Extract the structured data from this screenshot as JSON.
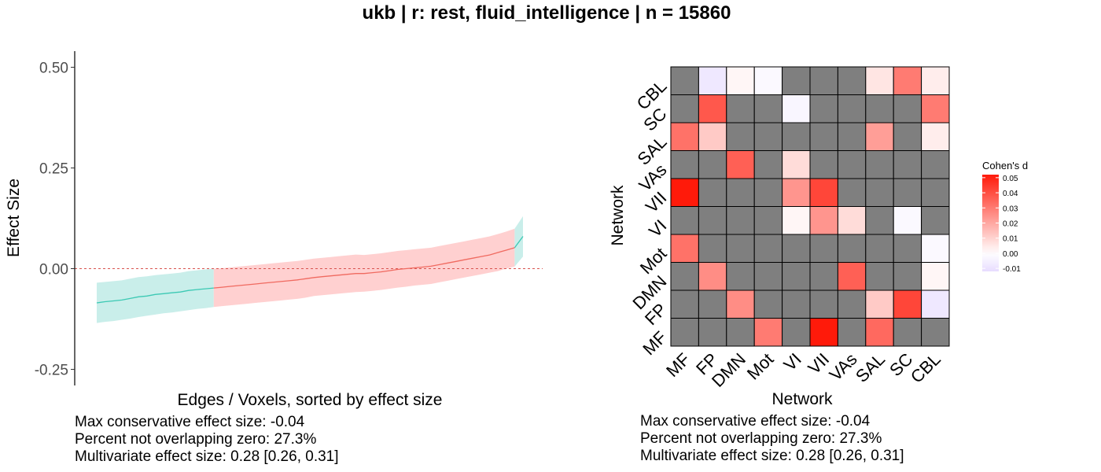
{
  "title": "ukb | r: rest, fluid_intelligence | n = 15860",
  "colors": {
    "neg_ci": "#c9eeea",
    "neg_line": "#3cc9b4",
    "pos_ci": "#ffd0d0",
    "pos_line": "#f06a60",
    "zero_line": "#d9534f",
    "na_cell": "#7f7f7f",
    "heat_low": "#e7dcff",
    "heat_mid": "#ffffff",
    "heat_high": "#ff1a0a"
  },
  "left_stats": [
    "Max conservative effect size: -0.04",
    "Percent not overlapping zero: 27.3%",
    "Multivariate effect size: 0.28 [0.26, 0.31]"
  ],
  "right_stats": [
    "Max conservative effect size: -0.04",
    "Percent not overlapping zero: 27.3%",
    "Multivariate effect size: 0.28 [0.26, 0.31]"
  ],
  "chart_data": [
    {
      "type": "line",
      "xlabel": "Edges / Voxels, sorted by effect size",
      "ylabel": "Effect Size",
      "ylim": [
        -0.29,
        0.54
      ],
      "yticks": [
        0.5,
        0.25,
        0.0,
        -0.25
      ],
      "ytick_labels": [
        "0.50",
        "0.25",
        "0.00",
        "-0.25"
      ],
      "zero_reference_line": 0.0,
      "grid": false,
      "estimate": [
        -0.085,
        -0.082,
        -0.08,
        -0.078,
        -0.074,
        -0.07,
        -0.068,
        -0.064,
        -0.062,
        -0.06,
        -0.058,
        -0.054,
        -0.052,
        -0.05,
        -0.048,
        -0.046,
        -0.044,
        -0.042,
        -0.04,
        -0.038,
        -0.036,
        -0.034,
        -0.032,
        -0.03,
        -0.028,
        -0.025,
        -0.022,
        -0.02,
        -0.018,
        -0.016,
        -0.014,
        -0.012,
        -0.012,
        -0.01,
        -0.008,
        -0.005,
        -0.002,
        0.0,
        0.002,
        0.004,
        0.006,
        0.01,
        0.014,
        0.018,
        0.022,
        0.026,
        0.03,
        0.034,
        0.04,
        0.046,
        0.052,
        0.08
      ],
      "ci_lower": [
        -0.135,
        -0.132,
        -0.13,
        -0.127,
        -0.124,
        -0.12,
        -0.117,
        -0.114,
        -0.111,
        -0.109,
        -0.106,
        -0.103,
        -0.1,
        -0.098,
        -0.095,
        -0.093,
        -0.091,
        -0.089,
        -0.087,
        -0.085,
        -0.083,
        -0.081,
        -0.079,
        -0.077,
        -0.075,
        -0.072,
        -0.068,
        -0.066,
        -0.064,
        -0.062,
        -0.06,
        -0.058,
        -0.057,
        -0.055,
        -0.053,
        -0.05,
        -0.047,
        -0.045,
        -0.042,
        -0.04,
        -0.038,
        -0.034,
        -0.03,
        -0.026,
        -0.022,
        -0.018,
        -0.014,
        -0.01,
        -0.006,
        0.0,
        0.005,
        0.03
      ],
      "ci_upper": [
        -0.035,
        -0.033,
        -0.031,
        -0.029,
        -0.025,
        -0.021,
        -0.019,
        -0.016,
        -0.014,
        -0.012,
        -0.01,
        -0.006,
        -0.004,
        -0.002,
        0.0,
        0.001,
        0.003,
        0.005,
        0.007,
        0.009,
        0.011,
        0.013,
        0.015,
        0.017,
        0.019,
        0.022,
        0.025,
        0.027,
        0.029,
        0.031,
        0.033,
        0.035,
        0.034,
        0.036,
        0.038,
        0.041,
        0.044,
        0.046,
        0.048,
        0.05,
        0.052,
        0.056,
        0.06,
        0.064,
        0.068,
        0.072,
        0.076,
        0.08,
        0.086,
        0.092,
        0.099,
        0.13
      ],
      "ci_overlaps_zero": [
        false,
        false,
        false,
        false,
        false,
        false,
        false,
        false,
        false,
        false,
        false,
        false,
        false,
        false,
        true,
        true,
        true,
        true,
        true,
        true,
        true,
        true,
        true,
        true,
        true,
        true,
        true,
        true,
        true,
        true,
        true,
        true,
        true,
        true,
        true,
        true,
        true,
        true,
        true,
        true,
        true,
        true,
        true,
        true,
        true,
        true,
        true,
        true,
        true,
        true,
        false,
        false
      ]
    },
    {
      "type": "heatmap",
      "xlabel": "Network",
      "ylabel": "Network",
      "x_categories": [
        "MF",
        "FP",
        "DMN",
        "Mot",
        "VI",
        "VII",
        "VAs",
        "SAL",
        "SC",
        "CBL"
      ],
      "y_categories_top_to_bottom": [
        "CBL",
        "SC",
        "SAL",
        "VAs",
        "VII",
        "VI",
        "Mot",
        "DMN",
        "FP",
        "MF"
      ],
      "legend_title": "Cohen's d",
      "legend_ticks": [
        0.05,
        0.04,
        0.03,
        0.02,
        0.01,
        0.0,
        -0.01
      ],
      "legend_tick_labels": [
        "0.05",
        "0.04",
        "0.03",
        "0.02",
        "0.01",
        "0.00",
        "-0.01"
      ],
      "value_range": [
        -0.012,
        0.052
      ],
      "values_top_to_bottom": [
        [
          null,
          -0.008,
          0.002,
          -0.002,
          null,
          null,
          null,
          0.006,
          0.03,
          0.004
        ],
        [
          null,
          0.038,
          null,
          null,
          -0.003,
          null,
          null,
          null,
          null,
          0.03
        ],
        [
          0.032,
          0.012,
          null,
          null,
          null,
          null,
          null,
          0.022,
          null,
          0.004
        ],
        [
          null,
          null,
          0.036,
          null,
          0.008,
          null,
          null,
          null,
          null,
          null
        ],
        [
          0.052,
          null,
          null,
          null,
          0.024,
          0.042,
          null,
          null,
          null,
          null
        ],
        [
          null,
          null,
          null,
          null,
          0.002,
          0.024,
          0.008,
          null,
          -0.002,
          null
        ],
        [
          0.032,
          null,
          null,
          null,
          null,
          null,
          null,
          null,
          null,
          -0.002
        ],
        [
          null,
          0.026,
          null,
          null,
          null,
          null,
          0.036,
          null,
          null,
          0.002
        ],
        [
          null,
          null,
          0.026,
          null,
          null,
          null,
          null,
          0.012,
          0.042,
          -0.008
        ],
        [
          null,
          null,
          null,
          0.03,
          null,
          0.052,
          null,
          0.034,
          null,
          null
        ]
      ]
    }
  ]
}
